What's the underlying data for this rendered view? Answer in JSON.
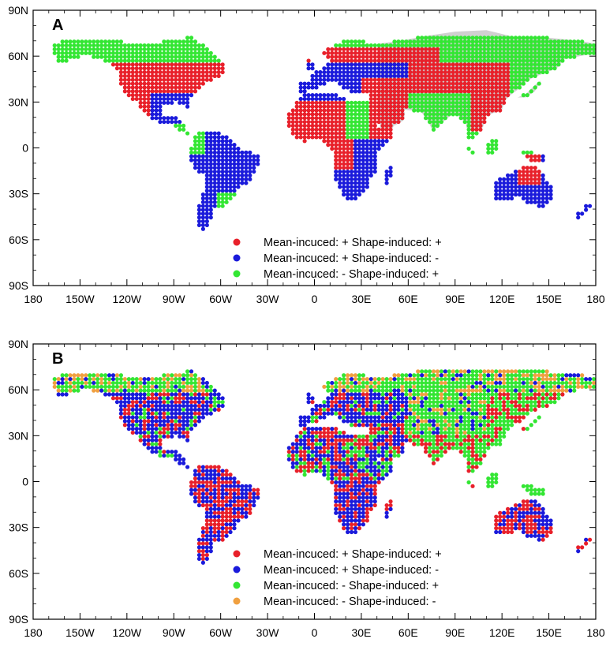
{
  "colors": {
    "pos_pos": "#e8202a",
    "pos_neg": "#1a1adb",
    "neg_pos": "#33e633",
    "neg_neg": "#f0a040",
    "land": "#d0d0d0"
  },
  "axes": {
    "lat_labels": [
      "90N",
      "60N",
      "30N",
      "0",
      "30S",
      "60S",
      "90S"
    ],
    "lon_labels": [
      "180",
      "150W",
      "120W",
      "90W",
      "60W",
      "30W",
      "0",
      "30E",
      "60E",
      "90E",
      "120E",
      "150E",
      "180"
    ]
  },
  "panels": [
    {
      "label": "A",
      "legend": [
        {
          "text": "Mean-incuced: +  Shape-induced: +",
          "color": "pos_pos"
        },
        {
          "text": "Mean-incuced: +  Shape-induced: -",
          "color": "pos_neg"
        },
        {
          "text": "Mean-incuced: -   Shape-induced: +",
          "color": "neg_pos"
        }
      ]
    },
    {
      "label": "B",
      "legend": [
        {
          "text": "Mean-incuced: +  Shape-induced: +",
          "color": "pos_pos"
        },
        {
          "text": "Mean-incuced: +  Shape-induced: -",
          "color": "pos_neg"
        },
        {
          "text": "Mean-incuced: -   Shape-induced: +",
          "color": "neg_pos"
        },
        {
          "text": "Mean-incuced: -   Shape-induced: -",
          "color": "neg_neg"
        }
      ]
    }
  ],
  "chart_data": {
    "type": "scatter",
    "xlim": [
      -180,
      180
    ],
    "ylim": [
      -90,
      90
    ],
    "grid": false
  }
}
